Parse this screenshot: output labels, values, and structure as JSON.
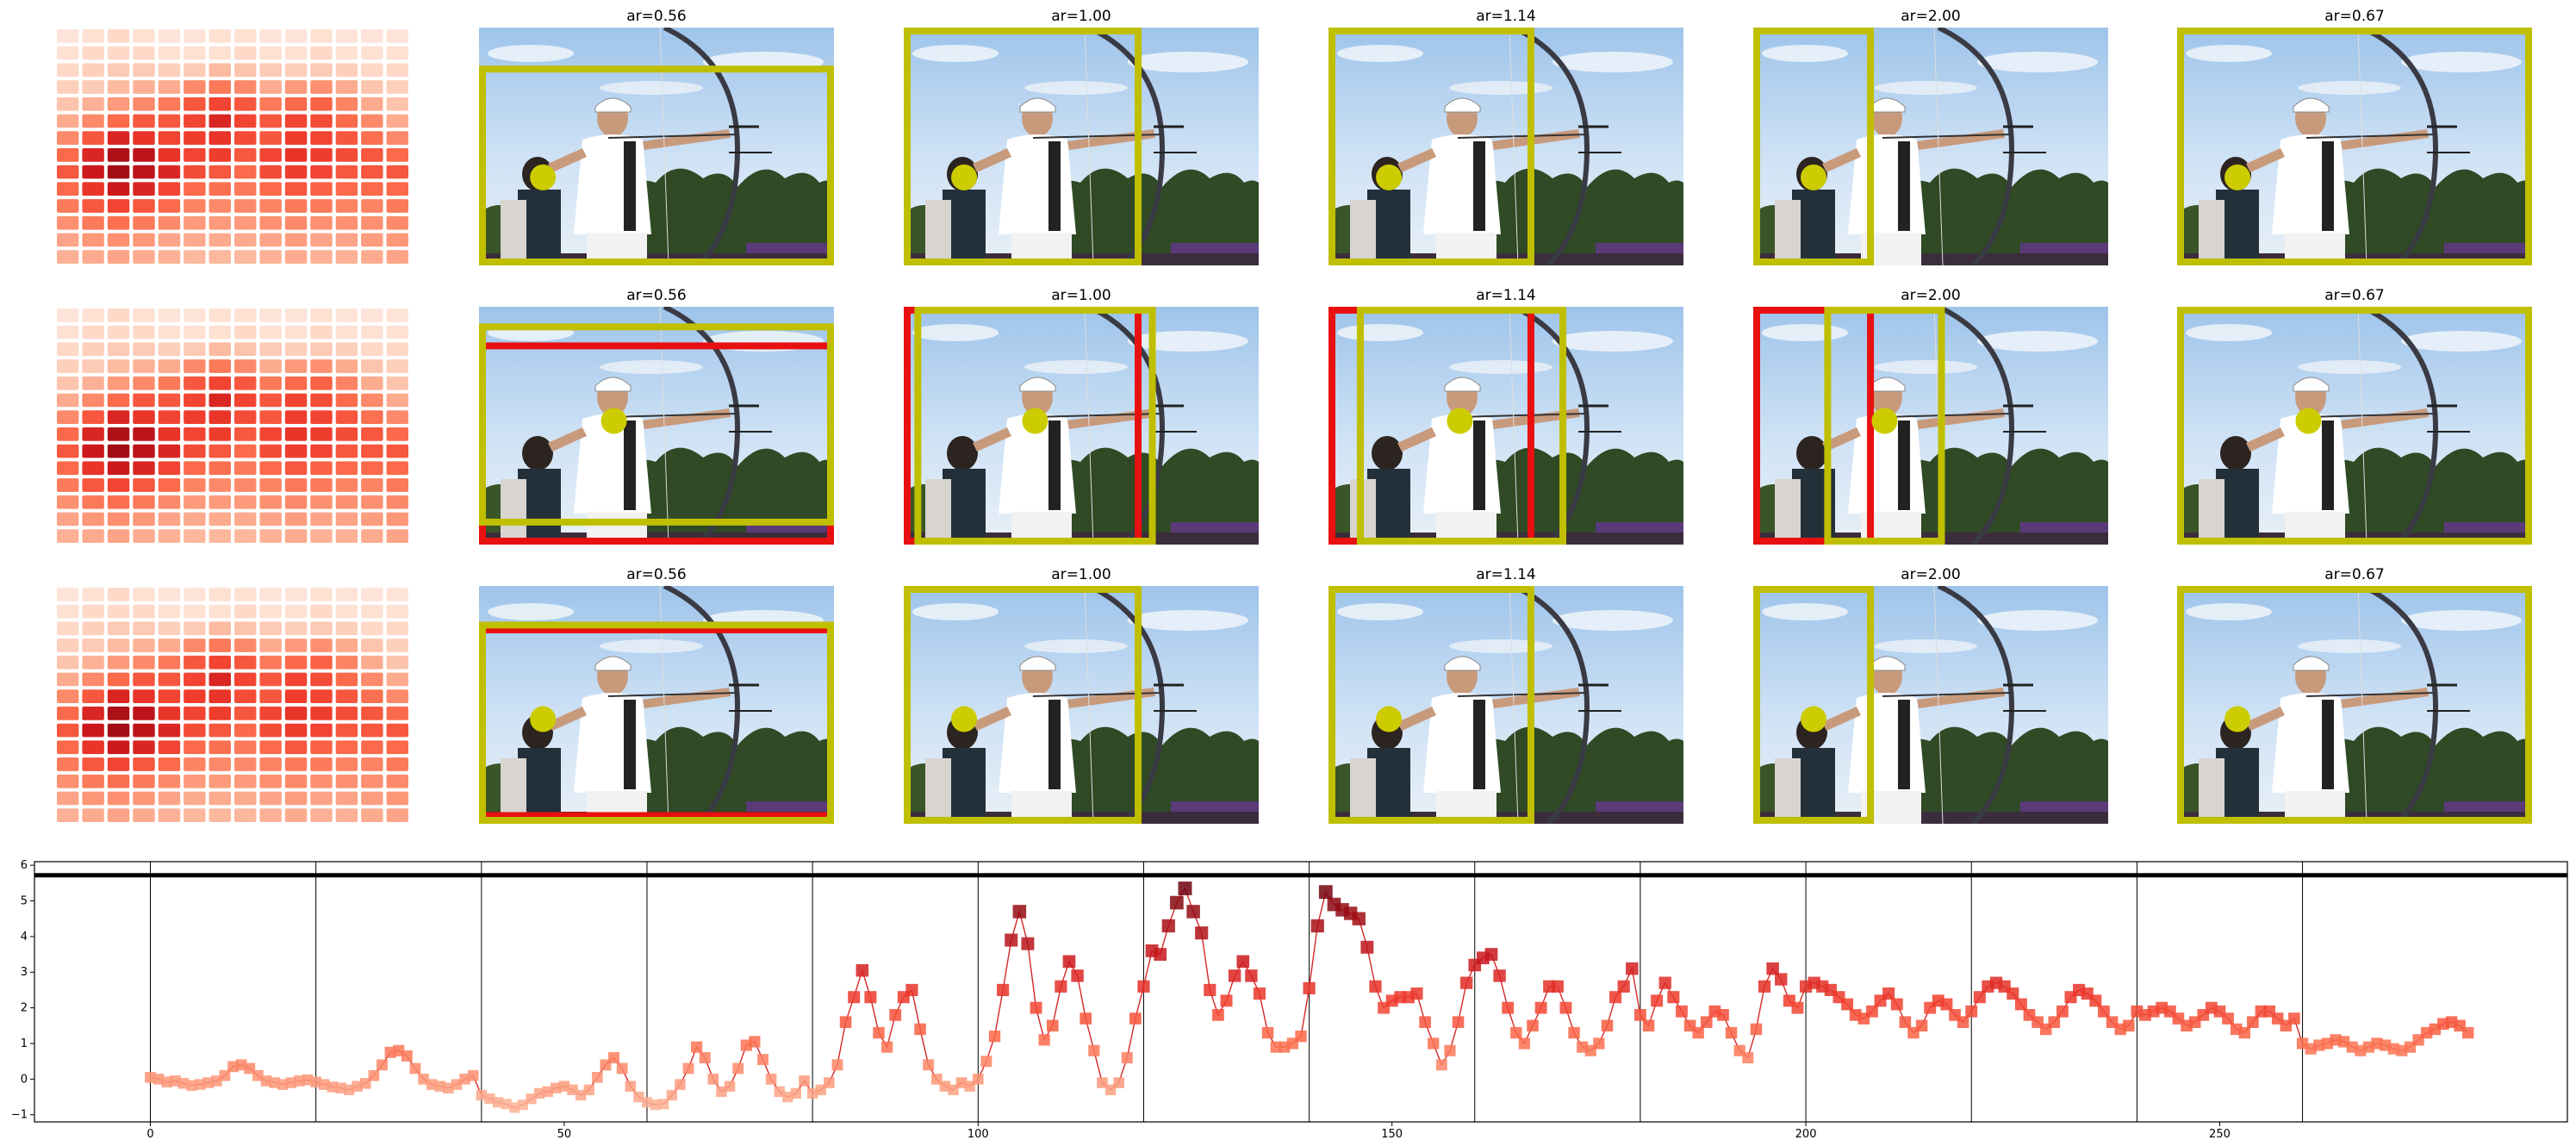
{
  "chart_data": [
    {
      "type": "heatmap",
      "description_rows": 3,
      "grid": [
        14,
        14
      ],
      "colormap": "Reds",
      "values": [
        [
          0.1,
          0.12,
          0.15,
          0.12,
          0.1,
          0.1,
          0.12,
          0.12,
          0.1,
          0.1,
          0.12,
          0.1,
          0.1,
          0.1
        ],
        [
          0.12,
          0.15,
          0.15,
          0.15,
          0.12,
          0.12,
          0.12,
          0.15,
          0.12,
          0.12,
          0.15,
          0.12,
          0.12,
          0.12
        ],
        [
          0.15,
          0.18,
          0.2,
          0.2,
          0.18,
          0.2,
          0.25,
          0.22,
          0.2,
          0.18,
          0.2,
          0.18,
          0.15,
          0.15
        ],
        [
          0.18,
          0.2,
          0.25,
          0.28,
          0.3,
          0.4,
          0.45,
          0.4,
          0.3,
          0.35,
          0.38,
          0.3,
          0.22,
          0.18
        ],
        [
          0.22,
          0.28,
          0.35,
          0.4,
          0.45,
          0.55,
          0.6,
          0.55,
          0.45,
          0.5,
          0.52,
          0.42,
          0.3,
          0.22
        ],
        [
          0.3,
          0.4,
          0.5,
          0.55,
          0.55,
          0.6,
          0.7,
          0.6,
          0.55,
          0.6,
          0.58,
          0.5,
          0.4,
          0.3
        ],
        [
          0.4,
          0.55,
          0.7,
          0.65,
          0.6,
          0.62,
          0.65,
          0.58,
          0.55,
          0.62,
          0.6,
          0.55,
          0.48,
          0.4
        ],
        [
          0.5,
          0.7,
          0.85,
          0.8,
          0.65,
          0.6,
          0.62,
          0.55,
          0.6,
          0.65,
          0.62,
          0.58,
          0.55,
          0.5
        ],
        [
          0.55,
          0.75,
          0.88,
          0.8,
          0.7,
          0.58,
          0.55,
          0.5,
          0.58,
          0.62,
          0.6,
          0.55,
          0.55,
          0.55
        ],
        [
          0.5,
          0.65,
          0.75,
          0.7,
          0.6,
          0.5,
          0.48,
          0.45,
          0.5,
          0.55,
          0.52,
          0.5,
          0.5,
          0.5
        ],
        [
          0.45,
          0.55,
          0.6,
          0.55,
          0.5,
          0.42,
          0.4,
          0.4,
          0.42,
          0.45,
          0.45,
          0.42,
          0.42,
          0.45
        ],
        [
          0.38,
          0.45,
          0.48,
          0.45,
          0.4,
          0.35,
          0.35,
          0.35,
          0.38,
          0.4,
          0.38,
          0.38,
          0.38,
          0.4
        ],
        [
          0.32,
          0.36,
          0.38,
          0.36,
          0.32,
          0.3,
          0.3,
          0.3,
          0.32,
          0.34,
          0.32,
          0.32,
          0.34,
          0.36
        ],
        [
          0.28,
          0.3,
          0.32,
          0.3,
          0.28,
          0.26,
          0.26,
          0.26,
          0.28,
          0.3,
          0.28,
          0.28,
          0.3,
          0.32
        ]
      ]
    },
    {
      "type": "image_grid",
      "rows": 3,
      "titles": [
        "ar=0.56",
        "ar=1.00",
        "ar=1.14",
        "ar=2.00",
        "ar=0.67"
      ],
      "box_colors": {
        "yellow": "#bfbf00",
        "red": "#e81010"
      },
      "marker_color": "#cccc00"
    },
    {
      "type": "scatter",
      "line_color": "#d62728",
      "colormap": "Reds",
      "xlim": [
        -14,
        292
      ],
      "ylim": [
        -1.2,
        6.1
      ],
      "xticks": [
        0,
        50,
        100,
        150,
        200,
        250
      ],
      "yticks": [
        -1,
        0,
        1,
        2,
        3,
        4,
        5,
        6
      ],
      "vlines": [
        0,
        20,
        40,
        60,
        80,
        100,
        120,
        140,
        160,
        180,
        200,
        220,
        240,
        260
      ],
      "hline": 5.72,
      "x_start": 0,
      "y": [
        0.05,
        0.0,
        -0.08,
        -0.05,
        -0.12,
        -0.18,
        -0.15,
        -0.1,
        -0.05,
        0.1,
        0.35,
        0.4,
        0.3,
        0.1,
        -0.05,
        -0.1,
        -0.15,
        -0.1,
        -0.05,
        -0.02,
        -0.08,
        -0.15,
        -0.22,
        -0.25,
        -0.3,
        -0.2,
        -0.12,
        0.1,
        0.4,
        0.75,
        0.8,
        0.65,
        0.3,
        0.0,
        -0.15,
        -0.2,
        -0.25,
        -0.15,
        0.0,
        0.1,
        -0.45,
        -0.55,
        -0.65,
        -0.7,
        -0.8,
        -0.72,
        -0.55,
        -0.4,
        -0.35,
        -0.25,
        -0.2,
        -0.3,
        -0.45,
        -0.3,
        0.05,
        0.4,
        0.6,
        0.3,
        -0.2,
        -0.5,
        -0.65,
        -0.72,
        -0.7,
        -0.45,
        -0.15,
        0.3,
        0.9,
        0.6,
        0.0,
        -0.35,
        -0.2,
        0.3,
        0.95,
        1.05,
        0.55,
        0.0,
        -0.35,
        -0.5,
        -0.4,
        -0.05,
        -0.4,
        -0.3,
        -0.1,
        0.4,
        1.6,
        2.3,
        3.05,
        2.3,
        1.3,
        0.9,
        1.8,
        2.3,
        2.5,
        1.4,
        0.4,
        0.0,
        -0.2,
        -0.3,
        -0.1,
        -0.2,
        0.0,
        0.5,
        1.2,
        2.5,
        3.9,
        4.7,
        3.8,
        2.0,
        1.1,
        1.5,
        2.6,
        3.3,
        2.9,
        1.7,
        0.8,
        -0.1,
        -0.3,
        -0.1,
        0.6,
        1.7,
        2.6,
        3.6,
        3.5,
        4.3,
        4.95,
        5.35,
        4.7,
        4.1,
        2.5,
        1.8,
        2.2,
        2.9,
        3.3,
        2.9,
        2.4,
        1.3,
        0.9,
        0.9,
        1.0,
        1.2,
        2.55,
        4.3,
        5.25,
        4.9,
        4.75,
        4.65,
        4.5,
        3.7,
        2.6,
        2.0,
        2.2,
        2.3,
        2.3,
        2.4,
        1.6,
        1.0,
        0.4,
        0.8,
        1.6,
        2.7,
        3.2,
        3.4,
        3.5,
        2.9,
        2.0,
        1.3,
        1.0,
        1.5,
        2.0,
        2.6,
        2.6,
        2.0,
        1.3,
        0.9,
        0.8,
        1.0,
        1.5,
        2.3,
        2.6,
        3.1,
        1.8,
        1.5,
        2.2,
        2.7,
        2.3,
        1.9,
        1.5,
        1.3,
        1.6,
        1.9,
        1.8,
        1.3,
        0.8,
        0.6,
        1.4,
        2.6,
        3.1,
        2.8,
        2.2,
        2.0,
        2.6,
        2.7,
        2.6,
        2.5,
        2.3,
        2.1,
        1.8,
        1.7,
        1.9,
        2.2,
        2.4,
        2.1,
        1.6,
        1.3,
        1.5,
        2.0,
        2.2,
        2.1,
        1.8,
        1.6,
        1.9,
        2.3,
        2.6,
        2.7,
        2.6,
        2.4,
        2.1,
        1.8,
        1.6,
        1.4,
        1.6,
        1.9,
        2.3,
        2.5,
        2.4,
        2.2,
        1.9,
        1.6,
        1.4,
        1.5,
        1.9,
        1.8,
        1.9,
        2.0,
        1.9,
        1.7,
        1.5,
        1.6,
        1.8,
        2.0,
        1.9,
        1.7,
        1.4,
        1.3,
        1.6,
        1.9,
        1.9,
        1.7,
        1.5,
        1.7,
        1.0,
        0.85,
        0.95,
        1.0,
        1.1,
        1.05,
        0.9,
        0.8,
        0.9,
        1.0,
        0.95,
        0.85,
        0.8,
        0.9,
        1.1,
        1.3,
        1.4,
        1.55,
        1.6,
        1.5,
        1.3
      ]
    }
  ]
}
